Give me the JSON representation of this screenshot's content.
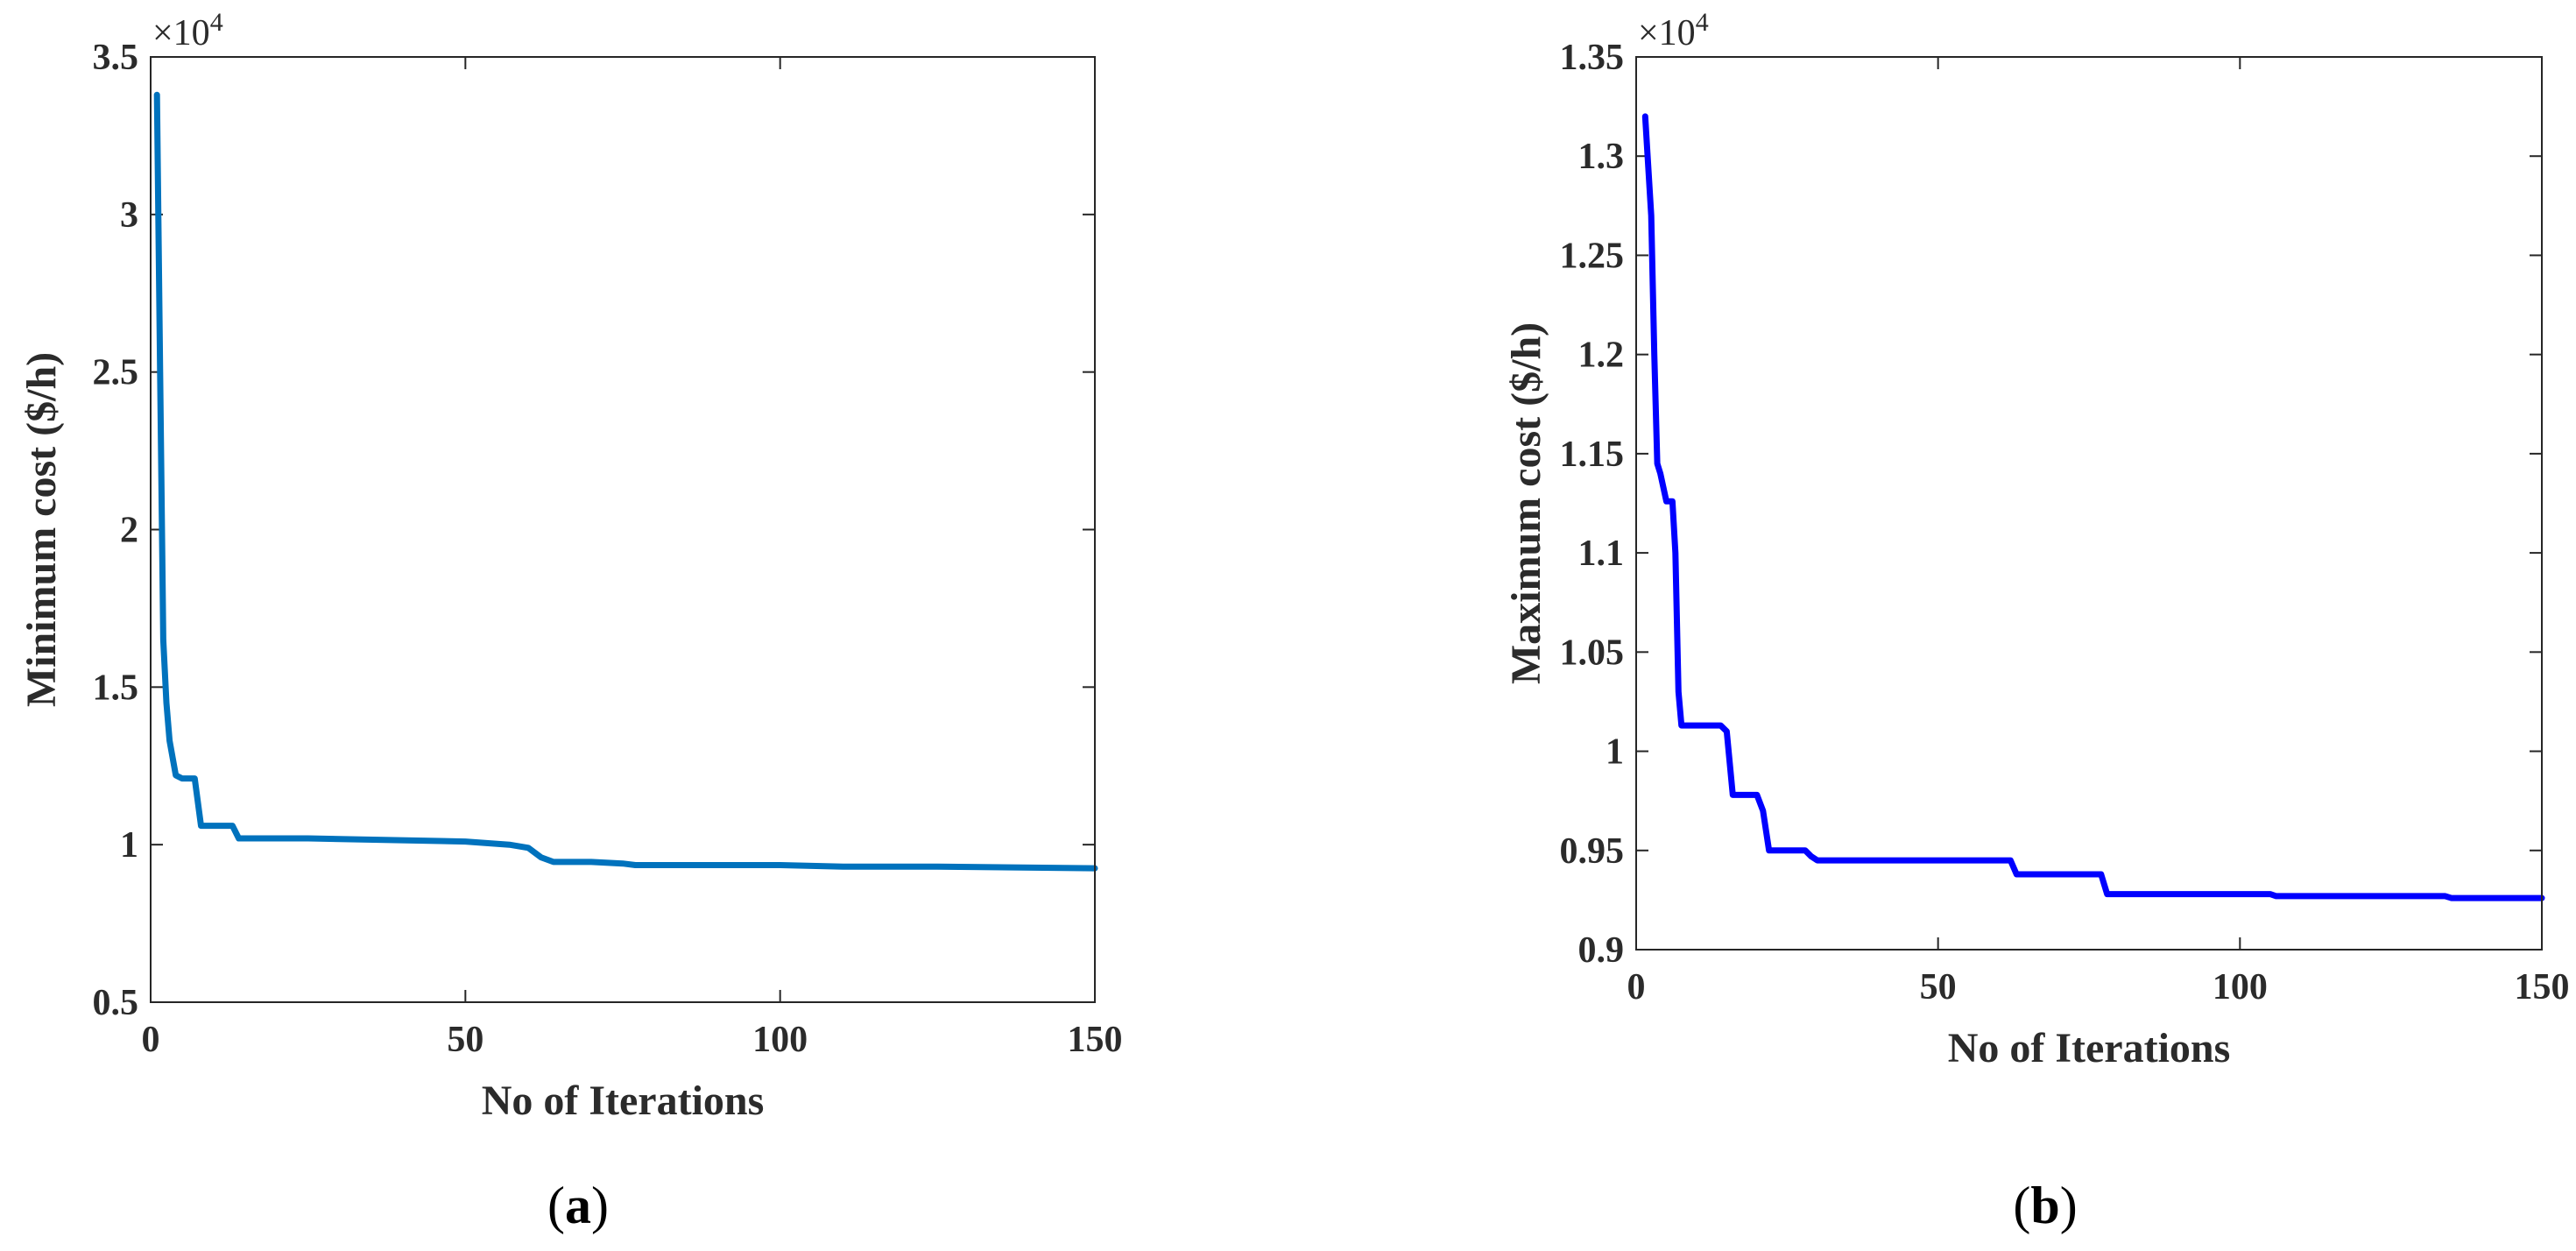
{
  "chart_data": [
    {
      "type": "line",
      "panel_caption_open": "(",
      "panel_caption_letter": "a",
      "panel_caption_close": ")",
      "xlabel": "No of Iterations",
      "ylabel": "Minimum cost ($/h)",
      "multiplier_base": "×10",
      "multiplier_exp": "4",
      "xlim": [
        0,
        150
      ],
      "ylim": [
        0.5,
        3.5
      ],
      "xticks": [
        0,
        50,
        100,
        150
      ],
      "yticks": [
        0.5,
        1,
        1.5,
        2,
        2.5,
        3,
        3.5
      ],
      "ytick_labels": [
        "0.5",
        "1",
        "1.5",
        "2",
        "2.5",
        "3",
        "3.5"
      ],
      "color": "#0072BD",
      "series": [
        {
          "name": "Minimum cost",
          "x": [
            1,
            1.5,
            2,
            2.5,
            3,
            4,
            5,
            7,
            8,
            13,
            14,
            25,
            50,
            57,
            60,
            62,
            64,
            70,
            75,
            77,
            100,
            110,
            125,
            150
          ],
          "y": [
            3.38,
            2.5,
            1.65,
            1.45,
            1.33,
            1.22,
            1.21,
            1.21,
            1.06,
            1.06,
            1.02,
            1.02,
            1.01,
            1.0,
            0.99,
            0.96,
            0.945,
            0.945,
            0.94,
            0.935,
            0.935,
            0.93,
            0.93,
            0.925
          ]
        }
      ]
    },
    {
      "type": "line",
      "panel_caption_open": "(",
      "panel_caption_letter": "b",
      "panel_caption_close": ")",
      "xlabel": "No of Iterations",
      "ylabel": "Maximum cost ($/h)",
      "multiplier_base": "×10",
      "multiplier_exp": "4",
      "xlim": [
        0,
        150
      ],
      "ylim": [
        0.9,
        1.35
      ],
      "xticks": [
        0,
        50,
        100,
        150
      ],
      "yticks": [
        0.9,
        0.95,
        1.0,
        1.05,
        1.1,
        1.15,
        1.2,
        1.25,
        1.3,
        1.35
      ],
      "ytick_labels": [
        "0.9",
        "0.95",
        "1",
        "1.05",
        "1.1",
        "1.15",
        "1.2",
        "1.25",
        "1.3",
        "1.35"
      ],
      "color": "#0000FF",
      "series": [
        {
          "name": "Maximum cost",
          "x": [
            1.5,
            2.5,
            3,
            3.5,
            4,
            5,
            6,
            6.5,
            7,
            7.5,
            8,
            14,
            15,
            16,
            20,
            21,
            22,
            28,
            29,
            30,
            62,
            63,
            77,
            78,
            105,
            106,
            134,
            135,
            150
          ],
          "y": [
            1.32,
            1.27,
            1.2,
            1.145,
            1.14,
            1.126,
            1.126,
            1.1,
            1.03,
            1.013,
            1.013,
            1.013,
            1.01,
            0.978,
            0.978,
            0.97,
            0.95,
            0.95,
            0.947,
            0.945,
            0.945,
            0.938,
            0.938,
            0.928,
            0.928,
            0.927,
            0.927,
            0.926,
            0.926
          ]
        }
      ]
    }
  ]
}
